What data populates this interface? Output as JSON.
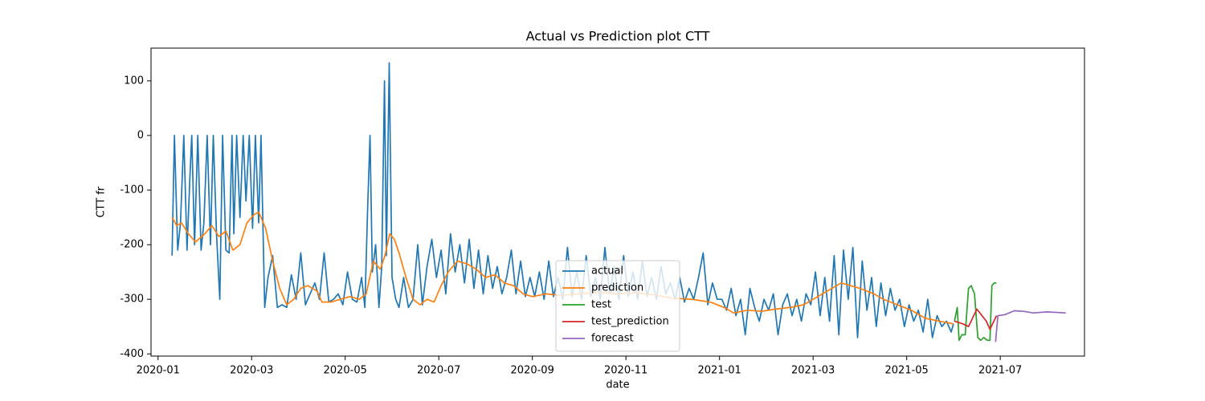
{
  "chart_data": {
    "type": "line",
    "title": "Actual vs Prediction plot CTT",
    "x_label": "date",
    "y_label": "CTT fr",
    "xlim": [
      -0.15,
      19.8
    ],
    "ylim": [
      -404,
      160
    ],
    "xticks": [
      {
        "value": 0,
        "label": "2020-01"
      },
      {
        "value": 2,
        "label": "2020-03"
      },
      {
        "value": 4,
        "label": "2020-05"
      },
      {
        "value": 6,
        "label": "2020-07"
      },
      {
        "value": 8,
        "label": "2020-09"
      },
      {
        "value": 10,
        "label": "2020-11"
      },
      {
        "value": 12,
        "label": "2021-01"
      },
      {
        "value": 14,
        "label": "2021-03"
      },
      {
        "value": 16,
        "label": "2021-05"
      },
      {
        "value": 18,
        "label": "2021-07"
      }
    ],
    "yticks": [
      -400,
      -300,
      -200,
      -100,
      0,
      100
    ],
    "legend": "lower center",
    "series": [
      {
        "name": "actual",
        "color": "#1f77b4",
        "x": [
          0.3,
          0.35,
          0.42,
          0.48,
          0.55,
          0.62,
          0.68,
          0.72,
          0.78,
          0.85,
          0.92,
          0.98,
          1.05,
          1.12,
          1.18,
          1.25,
          1.32,
          1.38,
          1.45,
          1.52,
          1.58,
          1.62,
          1.68,
          1.75,
          1.82,
          1.88,
          1.95,
          2.02,
          2.08,
          2.15,
          2.2,
          2.28,
          2.35,
          2.45,
          2.55,
          2.65,
          2.75,
          2.85,
          2.95,
          3.05,
          3.15,
          3.25,
          3.35,
          3.45,
          3.55,
          3.65,
          3.75,
          3.85,
          3.95,
          4.05,
          4.15,
          4.25,
          4.35,
          4.42,
          4.48,
          4.53,
          4.58,
          4.65,
          4.72,
          4.78,
          4.84,
          4.88,
          4.94,
          5.0,
          5.08,
          5.15,
          5.25,
          5.35,
          5.45,
          5.55,
          5.65,
          5.75,
          5.85,
          5.95,
          6.05,
          6.15,
          6.25,
          6.35,
          6.45,
          6.55,
          6.65,
          6.75,
          6.85,
          6.95,
          7.05,
          7.15,
          7.25,
          7.35,
          7.45,
          7.55,
          7.65,
          7.75,
          7.85,
          7.95,
          8.05,
          8.15,
          8.25,
          8.35,
          8.45,
          8.55,
          8.65,
          8.75,
          8.85,
          8.95,
          9.05,
          9.15,
          9.25,
          9.35,
          9.45,
          9.55,
          9.65,
          9.75,
          9.85,
          9.95,
          10.05,
          10.15,
          10.25,
          10.35,
          10.45,
          10.55,
          10.65,
          10.75,
          10.85,
          10.95,
          11.05,
          11.15,
          11.25,
          11.35,
          11.45,
          11.55,
          11.65,
          11.75,
          11.85,
          11.95,
          12.05,
          12.15,
          12.25,
          12.35,
          12.45,
          12.55,
          12.65,
          12.75,
          12.85,
          12.95,
          13.05,
          13.15,
          13.25,
          13.35,
          13.45,
          13.55,
          13.65,
          13.75,
          13.85,
          13.95,
          14.05,
          14.15,
          14.25,
          14.35,
          14.45,
          14.55,
          14.65,
          14.75,
          14.85,
          14.95,
          15.05,
          15.15,
          15.25,
          15.35,
          15.45,
          15.55,
          15.65,
          15.75,
          15.85,
          15.95,
          16.05,
          16.15,
          16.25,
          16.35,
          16.45,
          16.55,
          16.65,
          16.75,
          16.85,
          16.95,
          17.0
        ],
        "values": [
          -220,
          0,
          -210,
          -160,
          0,
          -210,
          -80,
          0,
          -200,
          0,
          -210,
          -160,
          0,
          -200,
          0,
          -180,
          -300,
          0,
          -210,
          -215,
          0,
          -180,
          0,
          -150,
          0,
          -120,
          0,
          -170,
          0,
          -160,
          0,
          -315,
          -260,
          -220,
          -315,
          -310,
          -315,
          -255,
          -300,
          -215,
          -310,
          -290,
          -270,
          -300,
          -215,
          -305,
          -300,
          -290,
          -310,
          -250,
          -300,
          -305,
          -260,
          -315,
          -130,
          0,
          -250,
          -200,
          -315,
          -240,
          100,
          -220,
          133,
          -260,
          -300,
          -315,
          -260,
          -315,
          -300,
          -200,
          -310,
          -240,
          -190,
          -260,
          -210,
          -290,
          -180,
          -250,
          -200,
          -270,
          -190,
          -280,
          -210,
          -290,
          -220,
          -280,
          -240,
          -290,
          -260,
          -210,
          -290,
          -230,
          -295,
          -260,
          -295,
          -250,
          -300,
          -230,
          -295,
          -260,
          -300,
          -205,
          -295,
          -250,
          -300,
          -220,
          -295,
          -260,
          -300,
          -205,
          -290,
          -240,
          -300,
          -220,
          -295,
          -250,
          -300,
          -230,
          -295,
          -260,
          -300,
          -240,
          -290,
          -270,
          -300,
          -260,
          -305,
          -280,
          -300,
          -260,
          -215,
          -310,
          -270,
          -300,
          -300,
          -320,
          -280,
          -330,
          -300,
          -365,
          -280,
          -315,
          -340,
          -300,
          -320,
          -290,
          -365,
          -310,
          -290,
          -330,
          -300,
          -340,
          -290,
          -310,
          -250,
          -330,
          -260,
          -340,
          -220,
          -365,
          -210,
          -300,
          -205,
          -370,
          -230,
          -320,
          -260,
          -350,
          -270,
          -330,
          -280,
          -320,
          -300,
          -350,
          -310,
          -340,
          -320,
          -360,
          -300,
          -370,
          -330,
          -350,
          -340,
          -360,
          -345
        ]
      },
      {
        "name": "prediction",
        "color": "#ff7f0e",
        "x": [
          0.3,
          0.4,
          0.5,
          0.65,
          0.8,
          1.0,
          1.15,
          1.3,
          1.45,
          1.6,
          1.75,
          1.9,
          2.05,
          2.15,
          2.3,
          2.45,
          2.6,
          2.75,
          2.9,
          3.05,
          3.2,
          3.4,
          3.5,
          3.7,
          3.9,
          4.1,
          4.3,
          4.45,
          4.6,
          4.75,
          4.85,
          4.95,
          5.05,
          5.15,
          5.3,
          5.45,
          5.6,
          5.75,
          5.9,
          6.05,
          6.2,
          6.4,
          6.6,
          6.8,
          7.0,
          7.2,
          7.4,
          7.6,
          7.8,
          8.0,
          8.3,
          8.6,
          9.0,
          9.4,
          9.8,
          10.2,
          10.6,
          11.0,
          11.4,
          11.8,
          12.1,
          12.3,
          12.6,
          12.9,
          13.2,
          13.5,
          13.8,
          14.0,
          14.2,
          14.4,
          14.6,
          14.8,
          15.0,
          15.3,
          15.5,
          15.8,
          16.1,
          16.4,
          16.7,
          17.0
        ],
        "values": [
          -150,
          -165,
          -160,
          -180,
          -195,
          -180,
          -165,
          -185,
          -175,
          -210,
          -200,
          -160,
          -145,
          -140,
          -170,
          -230,
          -280,
          -310,
          -300,
          -280,
          -275,
          -285,
          -305,
          -305,
          -300,
          -295,
          -300,
          -290,
          -230,
          -245,
          -220,
          -180,
          -190,
          -215,
          -260,
          -300,
          -310,
          -300,
          -305,
          -275,
          -250,
          -230,
          -235,
          -245,
          -260,
          -255,
          -270,
          -275,
          -290,
          -295,
          -290,
          -293,
          -290,
          -287,
          -290,
          -288,
          -292,
          -298,
          -300,
          -305,
          -315,
          -325,
          -320,
          -322,
          -318,
          -315,
          -310,
          -300,
          -290,
          -280,
          -270,
          -275,
          -280,
          -290,
          -300,
          -310,
          -320,
          -335,
          -340,
          -345
        ]
      },
      {
        "name": "test",
        "color": "#2ca02c",
        "x": [
          17.02,
          17.08,
          17.12,
          17.18,
          17.25,
          17.32,
          17.38,
          17.45,
          17.52,
          17.58,
          17.65,
          17.72,
          17.78,
          17.82,
          17.87,
          17.92
        ],
        "values": [
          -340,
          -315,
          -375,
          -365,
          -365,
          -280,
          -275,
          -290,
          -370,
          -375,
          -370,
          -375,
          -375,
          -275,
          -270,
          -270
        ]
      },
      {
        "name": "test_prediction",
        "color": "#d62728",
        "x": [
          17.02,
          17.2,
          17.32,
          17.5,
          17.7,
          17.78,
          17.92
        ],
        "values": [
          -340,
          -345,
          -350,
          -318,
          -340,
          -355,
          -330
        ]
      },
      {
        "name": "forecast",
        "color": "#9467bd",
        "x": [
          17.9,
          17.95,
          18.1,
          18.3,
          18.5,
          18.7,
          19.0,
          19.4
        ],
        "values": [
          -378,
          -330,
          -328,
          -321,
          -322,
          -325,
          -323,
          -325
        ]
      }
    ]
  }
}
